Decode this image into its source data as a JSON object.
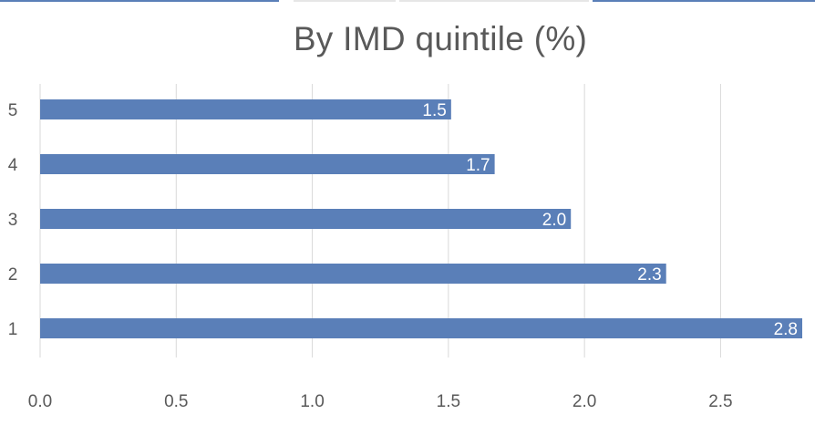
{
  "chart_data": {
    "type": "bar",
    "orientation": "horizontal",
    "title": "By IMD quintile (%)",
    "xlabel": "",
    "ylabel": "",
    "categories": [
      "1",
      "2",
      "3",
      "4",
      "5"
    ],
    "values": [
      2.8,
      2.3,
      1.95,
      1.67,
      1.51
    ],
    "data_labels": [
      "2.8",
      "2.3",
      "2.0",
      "1.7",
      "1.5"
    ],
    "xlim": [
      0,
      2.8
    ],
    "xticks": [
      "0.0",
      "0.5",
      "1.0",
      "1.5",
      "2.0",
      "2.5"
    ],
    "grid": true,
    "legend": "none",
    "bar_color": "#5a7fb8",
    "grid_color": "#d9d9d9",
    "text_color": "#595959"
  }
}
